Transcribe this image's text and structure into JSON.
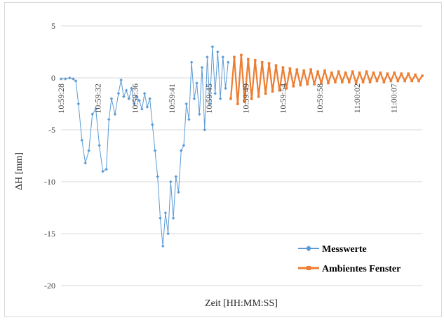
{
  "chart_data": {
    "type": "line",
    "title": "",
    "xlabel": "Zeit [HH:MM:SS]",
    "ylabel": "ΔH [mm]",
    "ylim": [
      -20,
      5
    ],
    "yticks": [
      5,
      0,
      -5,
      -10,
      -15,
      -20
    ],
    "x_tick_labels": [
      "10:59:28",
      "10:59:32",
      "10:59:36",
      "10:59:41",
      "10:59:45",
      "10:59:49",
      "10:59:54",
      "10:59:58",
      "11:00:02",
      "11:00:07"
    ],
    "x_tick_seconds": [
      0,
      4.25,
      8.5,
      12.75,
      17,
      21.25,
      25.5,
      29.75,
      34,
      38.25
    ],
    "x_range_seconds": [
      0,
      41.5
    ],
    "grid": "horizontal",
    "legend_position": "bottom-right",
    "colors": {
      "messwerte": "#5b9bd5",
      "ambient": "#ed7d31",
      "grid": "#d9d9d9"
    },
    "series": [
      {
        "name": "Messwerte",
        "color": "#5b9bd5",
        "marker": "diamond",
        "x": [
          0,
          0.5,
          1,
          1.4,
          1.7,
          2,
          2.4,
          2.8,
          3.2,
          3.6,
          4.0,
          4.4,
          4.8,
          5.2,
          5.5,
          5.8,
          6.2,
          6.6,
          6.9,
          7.2,
          7.5,
          7.8,
          8.1,
          8.4,
          8.7,
          9.0,
          9.3,
          9.6,
          9.9,
          10.2,
          10.5,
          10.8,
          11.1,
          11.4,
          11.7,
          12.0,
          12.3,
          12.6,
          12.9,
          13.2,
          13.5,
          13.8,
          14.1,
          14.4,
          14.7,
          15.0,
          15.3,
          15.6,
          15.9,
          16.2,
          16.5,
          16.8,
          17.1,
          17.4,
          17.7,
          18.0,
          18.3,
          18.6,
          18.9,
          19.2
        ],
        "y": [
          -0.1,
          -0.1,
          0.0,
          -0.1,
          -0.3,
          -2.5,
          -6.0,
          -8.2,
          -7.0,
          -3.5,
          -3.0,
          -6.5,
          -9.0,
          -8.8,
          -4.0,
          -2.0,
          -3.5,
          -1.5,
          -0.2,
          -1.8,
          -1.2,
          -2.0,
          -1.0,
          -2.5,
          -1.8,
          -2.2,
          -3.0,
          -1.5,
          -2.8,
          -2.0,
          -4.5,
          -7.0,
          -9.5,
          -13.5,
          -16.2,
          -13.0,
          -15.0,
          -10.0,
          -13.5,
          -9.5,
          -11.0,
          -7.0,
          -6.5,
          -2.5,
          -4.0,
          1.5,
          -2.0,
          -0.5,
          -3.5,
          1.0,
          -5.0,
          2.0,
          -2.5,
          3.0,
          -1.5,
          2.5,
          -2.0,
          2.0,
          -1.0,
          1.5
        ]
      },
      {
        "name": "Ambientes Fenster",
        "color": "#ed7d31",
        "marker": "square",
        "x": [
          19.5,
          19.9,
          20.3,
          20.7,
          21.1,
          21.5,
          21.9,
          22.3,
          22.7,
          23.1,
          23.5,
          23.9,
          24.3,
          24.7,
          25.1,
          25.5,
          25.9,
          26.3,
          26.7,
          27.1,
          27.5,
          27.9,
          28.3,
          28.7,
          29.1,
          29.5,
          29.9,
          30.3,
          30.7,
          31.1,
          31.5,
          31.9,
          32.3,
          32.7,
          33.1,
          33.5,
          33.9,
          34.3,
          34.7,
          35.1,
          35.5,
          35.9,
          36.3,
          36.7,
          37.1,
          37.5,
          37.9,
          38.3,
          38.7,
          39.1,
          39.5,
          39.9,
          40.3,
          40.7,
          41.1,
          41.5
        ],
        "y": [
          -2.0,
          2.0,
          -2.5,
          2.2,
          -2.3,
          1.8,
          -2.0,
          1.7,
          -1.8,
          1.5,
          -1.5,
          1.4,
          -1.3,
          1.2,
          -1.2,
          1.0,
          -1.0,
          0.9,
          -0.8,
          0.8,
          -0.7,
          0.7,
          -0.6,
          0.8,
          -0.6,
          0.6,
          -0.5,
          0.7,
          -0.5,
          0.5,
          -0.4,
          0.6,
          -0.4,
          0.5,
          -0.4,
          0.6,
          -0.5,
          0.5,
          -0.4,
          0.6,
          -0.4,
          0.5,
          -0.3,
          0.5,
          -0.4,
          0.4,
          -0.3,
          0.5,
          -0.3,
          0.4,
          -0.3,
          0.4,
          -0.3,
          0.3,
          -0.3,
          0.2
        ]
      }
    ]
  }
}
